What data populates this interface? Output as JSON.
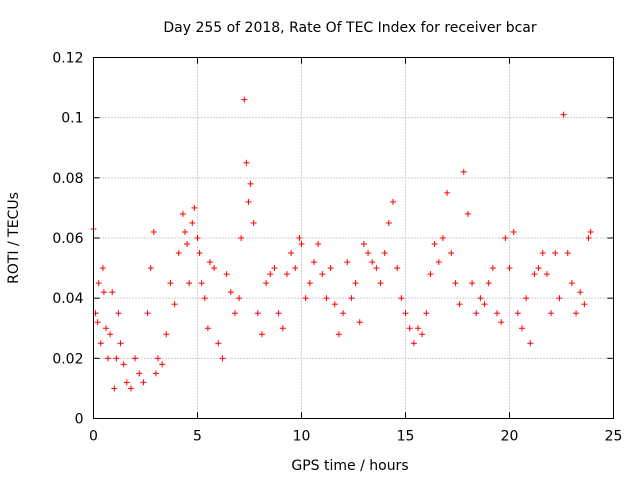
{
  "chart_data": {
    "type": "scatter",
    "title": "Day 255 of 2018, Rate Of TEC Index for receiver bcar",
    "xlabel": "GPS time / hours",
    "ylabel": "ROTI / TECUs",
    "xlim": [
      0,
      25
    ],
    "ylim": [
      0,
      0.12
    ],
    "xticks": [
      0,
      5,
      10,
      15,
      20,
      25
    ],
    "xtick_labels": [
      "0",
      "5",
      "10",
      "15",
      "20",
      "25"
    ],
    "yticks": [
      0,
      0.02,
      0.04,
      0.06,
      0.08,
      0.1,
      0.12
    ],
    "ytick_labels": [
      "0",
      "0.02",
      "0.04",
      "0.06",
      "0.08",
      "0.1",
      "0.12"
    ],
    "grid": true,
    "marker": "+",
    "marker_color": "#ff0000",
    "series": [
      {
        "x": [
          0.0,
          0.1,
          0.2,
          0.25,
          0.35,
          0.45,
          0.5,
          0.6,
          0.7,
          0.8,
          0.9,
          1.0,
          1.1,
          1.2,
          1.3,
          1.45,
          1.6,
          1.8,
          2.0,
          2.2,
          2.4,
          2.6,
          2.75,
          2.9,
          3.0,
          3.1,
          3.3,
          3.5,
          3.7,
          3.9,
          4.1,
          4.3,
          4.4,
          4.5,
          4.6,
          4.75,
          4.85,
          5.0,
          5.1,
          5.2,
          5.35,
          5.5,
          5.6,
          5.8,
          6.0,
          6.2,
          6.4,
          6.6,
          6.8,
          7.0,
          7.1,
          7.25,
          7.35,
          7.45,
          7.55,
          7.7,
          7.9,
          8.1,
          8.3,
          8.5,
          8.7,
          8.9,
          9.1,
          9.3,
          9.5,
          9.7,
          9.9,
          10.0,
          10.2,
          10.4,
          10.6,
          10.8,
          11.0,
          11.2,
          11.4,
          11.6,
          11.8,
          12.0,
          12.2,
          12.4,
          12.6,
          12.8,
          13.0,
          13.2,
          13.4,
          13.6,
          13.8,
          14.0,
          14.2,
          14.4,
          14.6,
          14.8,
          15.0,
          15.2,
          15.4,
          15.6,
          15.8,
          16.0,
          16.2,
          16.4,
          16.6,
          16.8,
          17.0,
          17.2,
          17.4,
          17.6,
          17.8,
          18.0,
          18.2,
          18.4,
          18.6,
          18.8,
          19.0,
          19.2,
          19.4,
          19.6,
          19.8,
          20.0,
          20.2,
          20.4,
          20.6,
          20.8,
          21.0,
          21.2,
          21.4,
          21.6,
          21.8,
          22.0,
          22.2,
          22.4,
          22.6,
          22.8,
          23.0,
          23.2,
          23.4,
          23.6,
          23.8,
          23.9
        ],
        "y": [
          0.063,
          0.035,
          0.032,
          0.045,
          0.025,
          0.05,
          0.042,
          0.03,
          0.02,
          0.028,
          0.042,
          0.01,
          0.02,
          0.035,
          0.025,
          0.018,
          0.012,
          0.01,
          0.02,
          0.015,
          0.012,
          0.035,
          0.05,
          0.062,
          0.015,
          0.02,
          0.018,
          0.028,
          0.045,
          0.038,
          0.055,
          0.068,
          0.062,
          0.058,
          0.045,
          0.065,
          0.07,
          0.06,
          0.055,
          0.045,
          0.04,
          0.03,
          0.052,
          0.05,
          0.025,
          0.02,
          0.048,
          0.042,
          0.035,
          0.04,
          0.06,
          0.106,
          0.085,
          0.072,
          0.078,
          0.065,
          0.035,
          0.028,
          0.045,
          0.048,
          0.05,
          0.035,
          0.03,
          0.048,
          0.055,
          0.05,
          0.06,
          0.058,
          0.04,
          0.045,
          0.052,
          0.058,
          0.048,
          0.04,
          0.05,
          0.038,
          0.028,
          0.035,
          0.052,
          0.04,
          0.045,
          0.032,
          0.058,
          0.055,
          0.052,
          0.05,
          0.045,
          0.055,
          0.065,
          0.072,
          0.05,
          0.04,
          0.035,
          0.03,
          0.025,
          0.03,
          0.028,
          0.035,
          0.048,
          0.058,
          0.052,
          0.06,
          0.075,
          0.055,
          0.045,
          0.038,
          0.082,
          0.068,
          0.045,
          0.035,
          0.04,
          0.038,
          0.045,
          0.05,
          0.035,
          0.032,
          0.06,
          0.05,
          0.062,
          0.035,
          0.03,
          0.04,
          0.025,
          0.048,
          0.05,
          0.055,
          0.048,
          0.035,
          0.055,
          0.04,
          0.101,
          0.055,
          0.045,
          0.035,
          0.042,
          0.038,
          0.06,
          0.062
        ]
      }
    ]
  }
}
